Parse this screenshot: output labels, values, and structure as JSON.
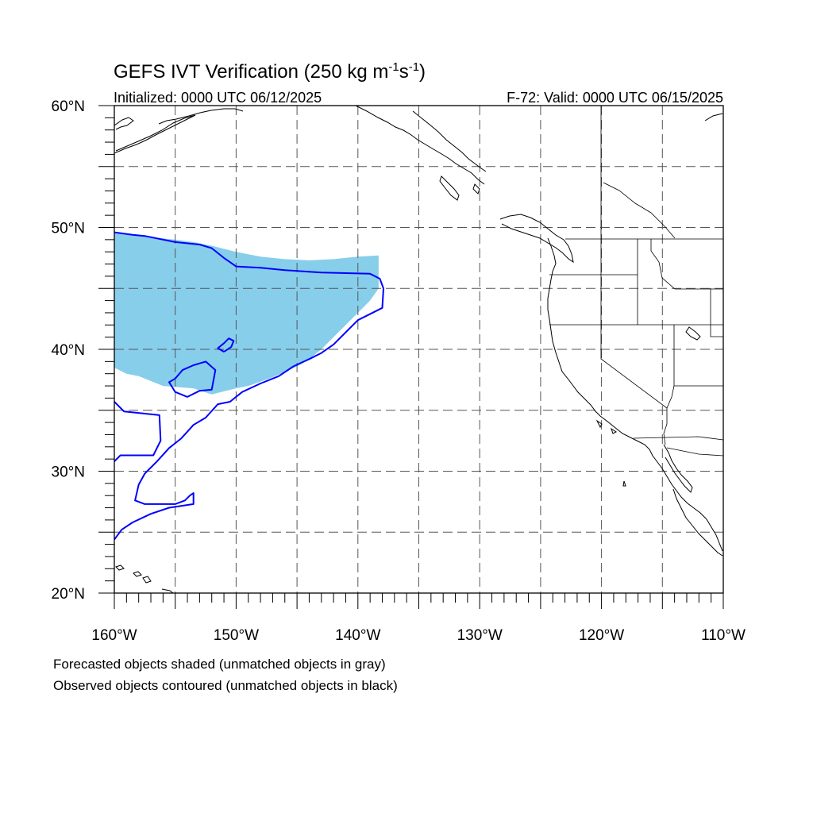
{
  "title": {
    "main": "GEFS IVT Verification (250 kg m",
    "sup1": "-1",
    "mid": "s",
    "sup2": "-1",
    "close": ")"
  },
  "subtitle": {
    "left": "Initialized: 0000 UTC 06/12/2025",
    "right": "F-72: Valid: 0000 UTC 06/15/2025"
  },
  "lat_labels": [
    {
      "value": 60,
      "text": "60°N"
    },
    {
      "value": 50,
      "text": "50°N"
    },
    {
      "value": 40,
      "text": "40°N"
    },
    {
      "value": 30,
      "text": "30°N"
    },
    {
      "value": 20,
      "text": "20°N"
    }
  ],
  "lon_labels": [
    {
      "value": -160,
      "text": "160°W"
    },
    {
      "value": -150,
      "text": "150°W"
    },
    {
      "value": -140,
      "text": "140°W"
    },
    {
      "value": -130,
      "text": "130°W"
    },
    {
      "value": -120,
      "text": "120°W"
    },
    {
      "value": -110,
      "text": "110°W"
    }
  ],
  "footnotes": {
    "line1": "Forecasted objects shaded (unmatched objects in gray)",
    "line2": "Observed objects contoured (unmatched objects in black)"
  },
  "colors": {
    "forecast_fill": "#87ceeb",
    "observed_contour": "#0000ff",
    "coastline": "#000000",
    "grid": "#555555"
  },
  "chart_data": {
    "type": "map",
    "projection": "cylindrical-equidistant",
    "extent": {
      "lon": [
        -160,
        -110
      ],
      "lat": [
        20,
        60
      ]
    },
    "grid": {
      "lon_step": 5,
      "lat_step": 5,
      "style": "dashed"
    },
    "forecast_object_polygon": [
      [
        -160,
        49.6
      ],
      [
        -157,
        49.2
      ],
      [
        -155,
        49
      ],
      [
        -153.5,
        48.8
      ],
      [
        -152,
        48.5
      ],
      [
        -150,
        48
      ],
      [
        -148,
        47.6
      ],
      [
        -146,
        47.4
      ],
      [
        -144,
        47.3
      ],
      [
        -142,
        47.4
      ],
      [
        -140,
        47.6
      ],
      [
        -138.3,
        47.7
      ],
      [
        -138.3,
        45
      ],
      [
        -139,
        44
      ],
      [
        -140,
        43
      ],
      [
        -141,
        42
      ],
      [
        -142,
        41
      ],
      [
        -143,
        40
      ],
      [
        -144,
        39.2
      ],
      [
        -145,
        38.6
      ],
      [
        -147,
        37.7
      ],
      [
        -149,
        37
      ],
      [
        -150,
        36.8
      ],
      [
        -152,
        36.3
      ],
      [
        -153.5,
        36.8
      ],
      [
        -156,
        37
      ],
      [
        -158,
        37.8
      ],
      [
        -159,
        38
      ],
      [
        -160,
        38.5
      ]
    ],
    "observed_object_contours": [
      [
        [
          -160,
          49.6
        ],
        [
          -158.5,
          49.4
        ],
        [
          -157.5,
          49.3
        ],
        [
          -155,
          48.8
        ],
        [
          -153,
          48.6
        ],
        [
          -152,
          48.3
        ],
        [
          -151,
          47.5
        ],
        [
          -150,
          46.8
        ],
        [
          -148,
          46.7
        ],
        [
          -146,
          46.5
        ],
        [
          -143,
          46.3
        ],
        [
          -139,
          46.2
        ],
        [
          -138.2,
          45.8
        ],
        [
          -137.9,
          45
        ],
        [
          -138,
          43.4
        ],
        [
          -140,
          42.4
        ],
        [
          -141,
          41.4
        ],
        [
          -142,
          40.4
        ],
        [
          -143,
          39.7
        ],
        [
          -144,
          39.2
        ],
        [
          -145.3,
          38.6
        ],
        [
          -146.5,
          37.8
        ],
        [
          -148,
          37.2
        ],
        [
          -149.5,
          36.5
        ],
        [
          -150.5,
          35.7
        ],
        [
          -151.5,
          35.5
        ],
        [
          -152.5,
          34.4
        ],
        [
          -153.5,
          33.8
        ],
        [
          -154.5,
          32.7
        ],
        [
          -155.5,
          31.9
        ],
        [
          -156.5,
          30.8
        ],
        [
          -157.5,
          29.8
        ],
        [
          -158,
          28.9
        ],
        [
          -158.3,
          27.6
        ],
        [
          -157.5,
          27.3
        ],
        [
          -155,
          27.3
        ],
        [
          -154.2,
          27.6
        ],
        [
          -153.8,
          28
        ],
        [
          -153.5,
          28.2
        ],
        [
          -153.5,
          27.3
        ],
        [
          -155.5,
          27
        ],
        [
          -157,
          26.5
        ],
        [
          -158.5,
          25.8
        ],
        [
          -159.4,
          25.2
        ],
        [
          -160,
          24.4
        ]
      ],
      [
        [
          -160,
          35.7
        ],
        [
          -159.2,
          34.9
        ],
        [
          -156.3,
          34.6
        ],
        [
          -156.2,
          32.5
        ],
        [
          -156.8,
          31.3
        ],
        [
          -159.5,
          31.3
        ],
        [
          -160,
          30.8
        ]
      ],
      [
        [
          -155,
          37.6
        ],
        [
          -154.4,
          38.3
        ],
        [
          -153.5,
          38.7
        ],
        [
          -152.5,
          39
        ],
        [
          -151.7,
          38.3
        ],
        [
          -152,
          36.7
        ],
        [
          -153,
          36.6
        ],
        [
          -154,
          36.1
        ],
        [
          -155,
          36.5
        ],
        [
          -155.5,
          37.3
        ],
        [
          -155,
          37.6
        ]
      ],
      [
        [
          -151,
          39.8
        ],
        [
          -150.4,
          40.2
        ],
        [
          -150.2,
          40.7
        ],
        [
          -150.6,
          40.9
        ],
        [
          -151,
          40.5
        ],
        [
          -151.5,
          40.1
        ],
        [
          -151,
          39.8
        ]
      ]
    ]
  }
}
